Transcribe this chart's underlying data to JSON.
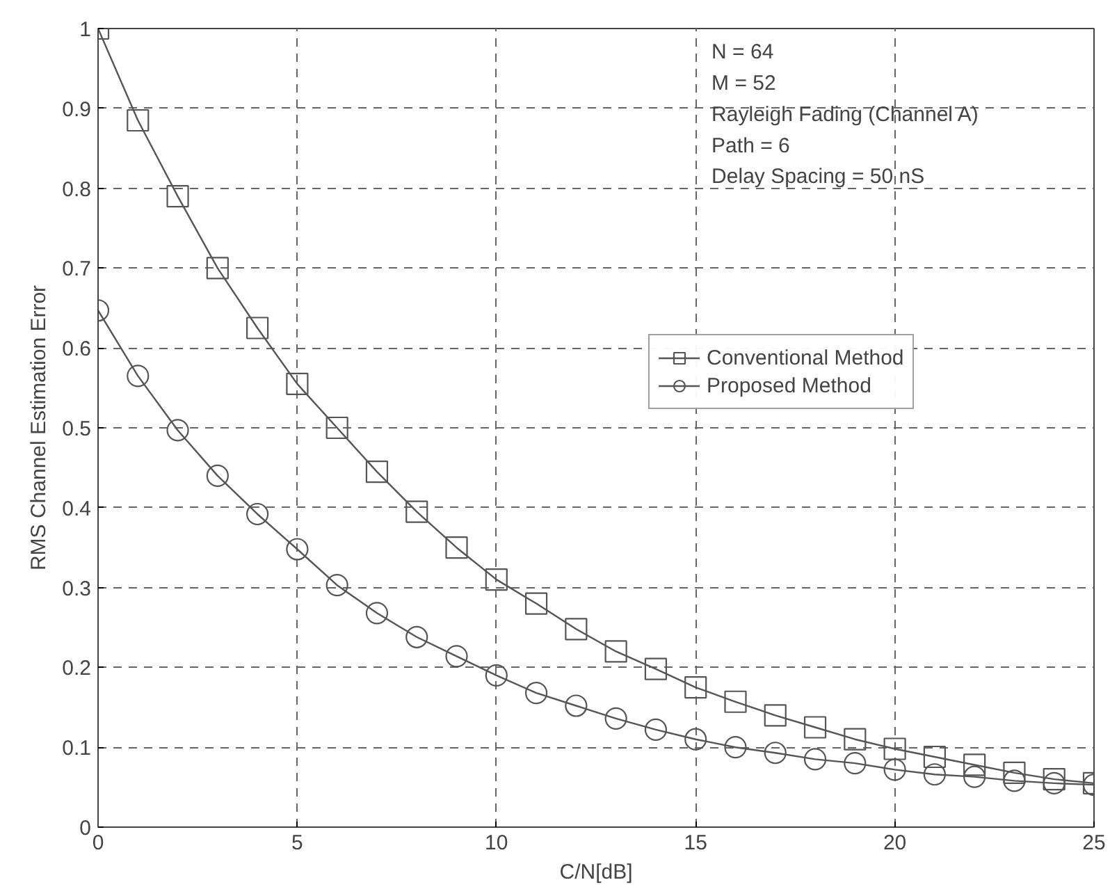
{
  "chart_data": {
    "type": "line",
    "xlabel": "C/N[dB]",
    "ylabel": "RMS Channel Estimation Error",
    "x": [
      0,
      1,
      2,
      3,
      4,
      5,
      6,
      7,
      8,
      9,
      10,
      11,
      12,
      13,
      14,
      15,
      16,
      17,
      18,
      19,
      20,
      21,
      22,
      23,
      24,
      25
    ],
    "series": [
      {
        "name": "Conventional Method",
        "color": "#555555",
        "marker": "square",
        "values": [
          1.0,
          0.885,
          0.79,
          0.7,
          0.625,
          0.555,
          0.5,
          0.445,
          0.395,
          0.35,
          0.31,
          0.28,
          0.248,
          0.22,
          0.198,
          0.175,
          0.157,
          0.14,
          0.125,
          0.11,
          0.098,
          0.088,
          0.078,
          0.068,
          0.06,
          0.055
        ]
      },
      {
        "name": "Proposed Method",
        "color": "#555555",
        "marker": "circle",
        "values": [
          0.647,
          0.565,
          0.497,
          0.44,
          0.392,
          0.348,
          0.303,
          0.268,
          0.238,
          0.214,
          0.19,
          0.168,
          0.152,
          0.136,
          0.122,
          0.11,
          0.1,
          0.093,
          0.085,
          0.08,
          0.072,
          0.066,
          0.063,
          0.058,
          0.055,
          0.053
        ]
      }
    ],
    "xlim": [
      0,
      25
    ],
    "xticks": [
      0,
      5,
      10,
      15,
      20,
      25
    ],
    "ylim": [
      0,
      1
    ],
    "yticks": [
      0,
      0.1,
      0.2,
      0.3,
      0.4,
      0.5,
      0.6,
      0.7,
      0.8,
      0.9,
      1
    ],
    "grid": true,
    "legend": "right",
    "line_style": "solid",
    "annotations": [
      "N = 64",
      "M = 52",
      "Rayleigh Fading (Channel A)",
      "Path = 6",
      "Delay Spacing = 50 nS"
    ]
  }
}
